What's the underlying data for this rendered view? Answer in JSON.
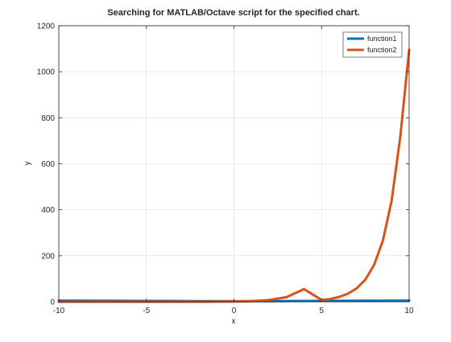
{
  "chart_data": {
    "type": "line",
    "title": "Searching for MATLAB/Octave script for the specified chart.",
    "xlabel": "x",
    "ylabel": "y",
    "xlim": [
      -10,
      10
    ],
    "ylim": [
      0,
      1200
    ],
    "xticks": [
      -10,
      -5,
      0,
      5,
      10
    ],
    "yticks": [
      0,
      200,
      400,
      600,
      800,
      1000,
      1200
    ],
    "grid": true,
    "legend_position": "top-right",
    "series": [
      {
        "name": "function1",
        "color": "#0072BD",
        "x": [
          -10,
          -9,
          -8,
          -7,
          -6,
          -5,
          -4,
          -3,
          -2,
          -1,
          0,
          1,
          2,
          3,
          4,
          5,
          6,
          7,
          8,
          9,
          10
        ],
        "y": [
          5,
          4.8,
          4.5,
          4.2,
          3.9,
          3.6,
          3.3,
          3,
          2.7,
          2.4,
          2.2,
          2.4,
          2.7,
          3,
          3.3,
          3.6,
          3.9,
          4.2,
          4.5,
          4.8,
          5
        ]
      },
      {
        "name": "function2",
        "color": "#D95319",
        "x": [
          -10,
          -9,
          -8,
          -7,
          -6,
          -5,
          -4,
          -3,
          -2,
          -1,
          0,
          1,
          2,
          3,
          4,
          5,
          5.5,
          6,
          6.5,
          7,
          7.5,
          8,
          8.5,
          9,
          9.5,
          10
        ],
        "y": [
          0,
          0,
          0,
          0,
          0,
          0,
          0,
          0,
          0.1,
          0.4,
          1,
          2.7,
          7.4,
          20,
          55,
          8,
          12,
          21,
          35,
          58,
          96,
          160,
          265,
          438,
          720,
          1095
        ]
      }
    ]
  }
}
